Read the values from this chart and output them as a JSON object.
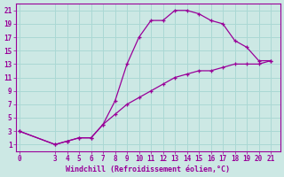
{
  "xlabel": "Windchill (Refroidissement éolien,°C)",
  "bg_color": "#cce8e4",
  "grid_color": "#aad8d4",
  "line_color": "#990099",
  "curve_x": [
    0,
    3,
    4,
    5,
    6,
    7,
    8,
    9,
    10,
    11,
    12,
    13,
    14,
    15,
    16,
    17,
    18,
    19,
    20,
    21
  ],
  "curve_y": [
    3.0,
    1.0,
    1.5,
    2.0,
    2.0,
    4.0,
    7.5,
    13.0,
    17.0,
    19.5,
    19.5,
    21.0,
    21.0,
    20.5,
    19.5,
    19.0,
    16.5,
    15.5,
    13.5,
    13.5
  ],
  "diag_x": [
    0,
    3,
    4,
    5,
    6,
    7,
    8,
    9,
    10,
    11,
    12,
    13,
    14,
    15,
    16,
    17,
    18,
    19,
    20,
    21
  ],
  "diag_y": [
    3.0,
    1.0,
    1.5,
    2.0,
    2.0,
    4.0,
    5.5,
    7.0,
    8.0,
    9.0,
    10.0,
    11.0,
    11.5,
    12.0,
    12.0,
    12.5,
    13.0,
    13.0,
    13.0,
    13.5
  ],
  "xlim": [
    -0.3,
    21.8
  ],
  "ylim": [
    0.0,
    22.0
  ],
  "xticks": [
    0,
    3,
    4,
    5,
    6,
    7,
    8,
    9,
    10,
    11,
    12,
    13,
    14,
    15,
    16,
    17,
    18,
    19,
    20,
    21
  ],
  "yticks": [
    1,
    3,
    5,
    7,
    9,
    11,
    13,
    15,
    17,
    19,
    21
  ]
}
